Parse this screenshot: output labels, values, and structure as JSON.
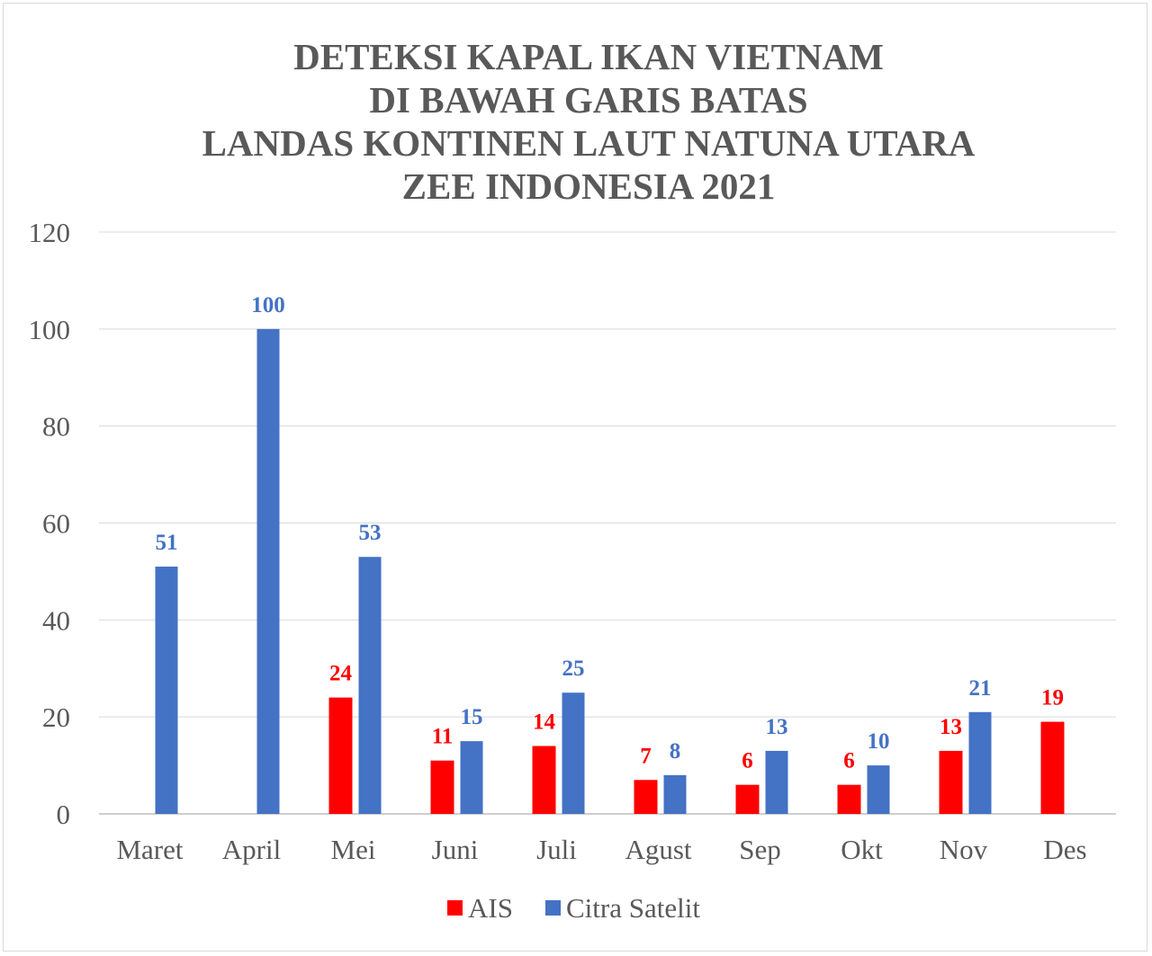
{
  "chart_data": {
    "type": "bar",
    "title": [
      "DETEKSI KAPAL IKAN VIETNAM",
      "DI BAWAH GARIS BATAS",
      "LANDAS KONTINEN LAUT NATUNA UTARA",
      "ZEE INDONESIA 2021"
    ],
    "categories": [
      "Maret",
      "April",
      "Mei",
      "Juni",
      "Juli",
      "Agust",
      "Sep",
      "Okt",
      "Nov",
      "Des"
    ],
    "series": [
      {
        "name": "AIS",
        "color": "#FF0000",
        "values": [
          null,
          null,
          24,
          11,
          14,
          7,
          6,
          6,
          13,
          19
        ]
      },
      {
        "name": "Citra Satelit",
        "color": "#4472C4",
        "values": [
          51,
          100,
          53,
          15,
          25,
          8,
          13,
          10,
          21,
          null
        ]
      }
    ],
    "yticks": [
      0,
      20,
      40,
      60,
      80,
      100,
      120
    ],
    "ylim": [
      0,
      120
    ],
    "xlabel": "",
    "ylabel": "",
    "grid": true,
    "legend": "bottom"
  }
}
